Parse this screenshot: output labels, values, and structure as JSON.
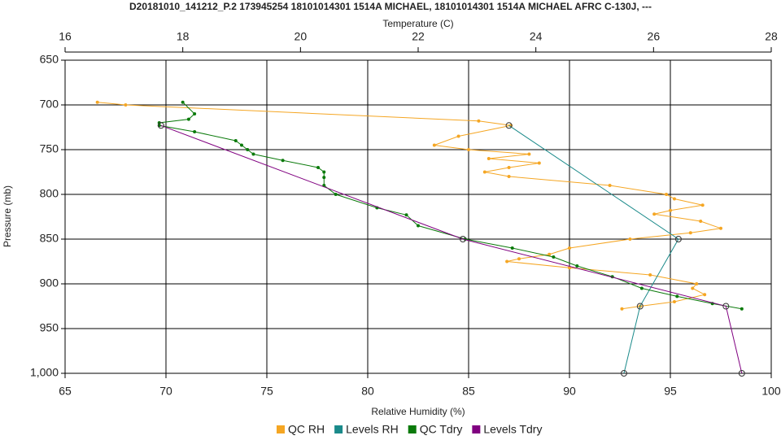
{
  "chart_data": {
    "type": "line",
    "title": "D20181010_141212_P.2 173945254 18101014301 1514A MICHAEL, 18101014301 1514A MICHAEL AFRC C-130J, ---",
    "xlabel": "Relative Humidity (%)",
    "x2label": "Temperature (C)",
    "ylabel": "Pressure (mb)",
    "xlim": [
      65,
      100
    ],
    "xticks": [
      65,
      70,
      75,
      80,
      85,
      90,
      95,
      100
    ],
    "x2lim": [
      16,
      28
    ],
    "x2ticks": [
      16,
      18,
      20,
      22,
      24,
      26,
      28
    ],
    "ylim": [
      650,
      1000
    ],
    "yticks": [
      650,
      700,
      750,
      800,
      850,
      900,
      950,
      {
        "value": 1000,
        "label": "1,000"
      }
    ],
    "y_inverted": true,
    "grid": true,
    "legend": "bottom",
    "series": [
      {
        "name": "QC RH",
        "color": "#f5a623",
        "axis": "x",
        "marker": "dot",
        "x": [
          66.6,
          68,
          85.5,
          87.1,
          84.5,
          83.3,
          85,
          88,
          86,
          88.5,
          87,
          85.8,
          87,
          92,
          94.8,
          95.2,
          96.6,
          95,
          94.2,
          96.5,
          97.5,
          96,
          93,
          90,
          89,
          87.5,
          86.9,
          90,
          94,
          96.3,
          96.1,
          96.7,
          95.2,
          93.5,
          92.6
        ],
        "y": [
          697,
          700,
          718,
          723,
          735,
          745,
          750,
          755,
          760,
          765,
          770,
          775,
          780,
          790,
          800,
          805,
          812,
          818,
          822,
          830,
          838,
          843,
          850,
          860,
          867,
          872,
          875,
          882,
          890,
          900,
          905,
          912,
          920,
          925,
          928
        ]
      },
      {
        "name": "Levels RH",
        "color": "#1a8a8a",
        "axis": "x",
        "marker": "circle",
        "x": [
          87.0,
          95.4,
          93.5,
          92.7
        ],
        "y": [
          723,
          850,
          925,
          1000
        ]
      },
      {
        "name": "QC Tdry",
        "color": "#0b7a0b",
        "axis": "x2",
        "marker": "dot",
        "x": [
          18.0,
          18.2,
          18.1,
          17.6,
          17.6,
          18.2,
          18.9,
          19.0,
          19.1,
          19.2,
          19.7,
          20.3,
          20.4,
          20.4,
          20.4,
          20.6,
          21.3,
          21.8,
          22.0,
          22.8,
          23.6,
          24.3,
          24.7,
          25.3,
          25.8,
          26.4,
          27.0,
          27.5
        ],
        "y": [
          697,
          710,
          716,
          720,
          723,
          730,
          740,
          745,
          750,
          755,
          762,
          770,
          775,
          781,
          790,
          800,
          815,
          823,
          835,
          850,
          860,
          870,
          880,
          892,
          905,
          914,
          922,
          928
        ]
      },
      {
        "name": "Levels Tdry",
        "color": "#800080",
        "axis": "x2",
        "marker": "circle",
        "x": [
          17.63,
          22.76,
          27.23,
          27.5
        ],
        "y": [
          723,
          850,
          925,
          1000
        ]
      }
    ]
  }
}
